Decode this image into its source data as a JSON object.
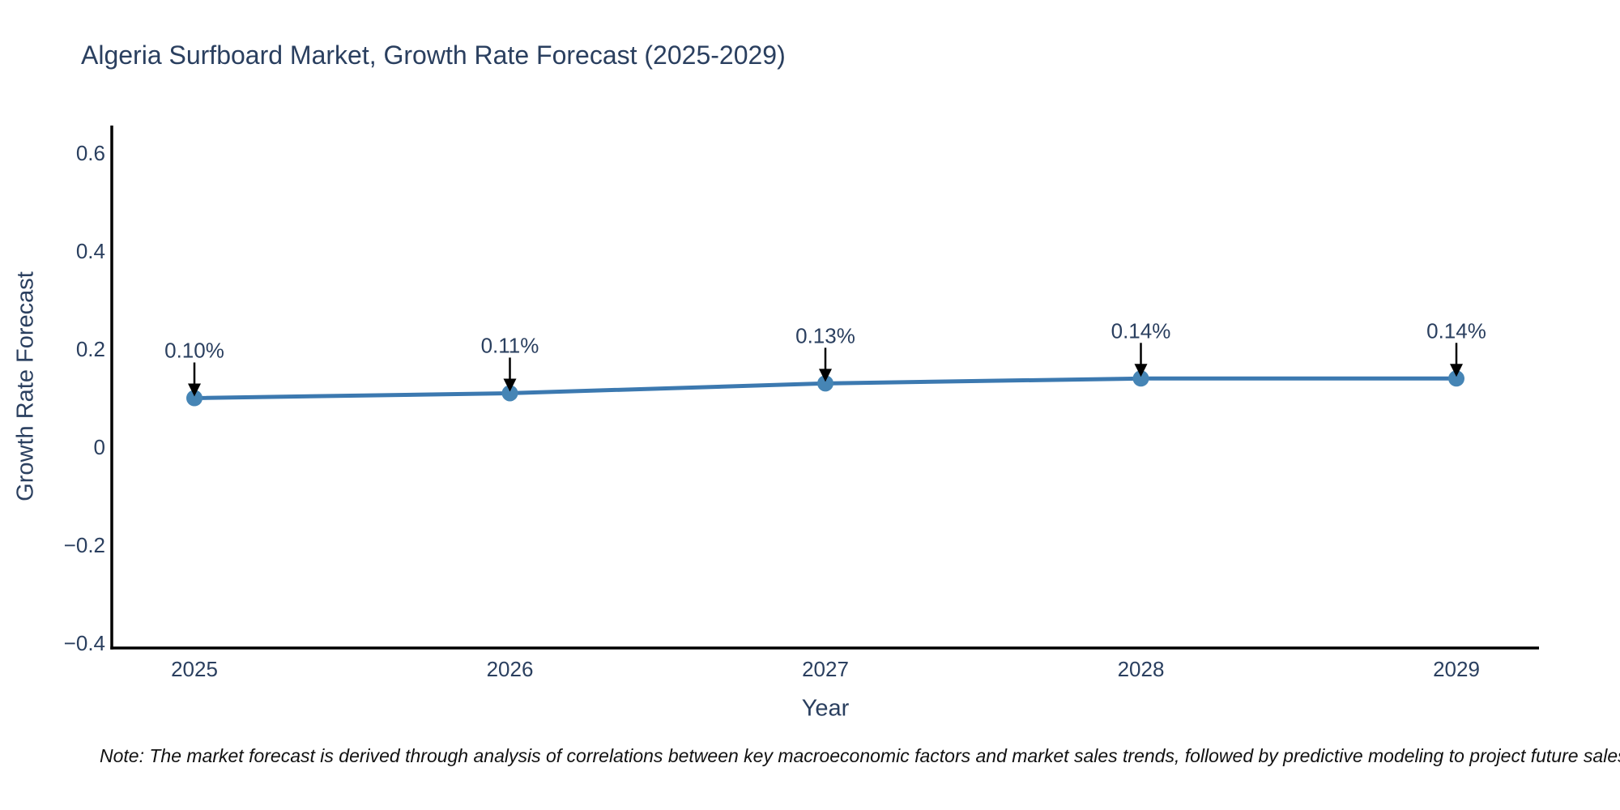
{
  "title": "Algeria Surfboard Market, Growth Rate Forecast (2025-2029)",
  "note": "Note: The market forecast is derived through analysis of correlations between key macroeconomic factors and market sales trends, followed by predictive modeling to project future sales.",
  "chart_data": {
    "type": "line",
    "x": [
      "2025",
      "2026",
      "2027",
      "2028",
      "2029"
    ],
    "values": [
      0.1,
      0.11,
      0.13,
      0.14,
      0.14
    ],
    "point_labels": [
      "0.10%",
      "0.11%",
      "0.13%",
      "0.14%",
      "0.14%"
    ],
    "title": "Algeria Surfboard Market, Growth Rate Forecast (2025-2029)",
    "xlabel": "Year",
    "ylabel": "Growth Rate Forecast",
    "ylim": [
      -0.4,
      0.6
    ],
    "yticks": [
      0.6,
      0.4,
      0.2,
      0,
      -0.2,
      -0.4
    ],
    "ytick_labels": [
      "0.6",
      "0.4",
      "0.2",
      "0",
      "−0.2",
      "−0.4"
    ],
    "grid": false,
    "legend": "none",
    "markers": true,
    "annotation_arrows": true,
    "colors": {
      "line": "#3c79b0",
      "marker": "#4685b5",
      "axis": "#000000",
      "text": "#2a3f5f",
      "annotation_text": "#2a3f5f",
      "arrow": "#000000",
      "background": "#ffffff"
    }
  }
}
